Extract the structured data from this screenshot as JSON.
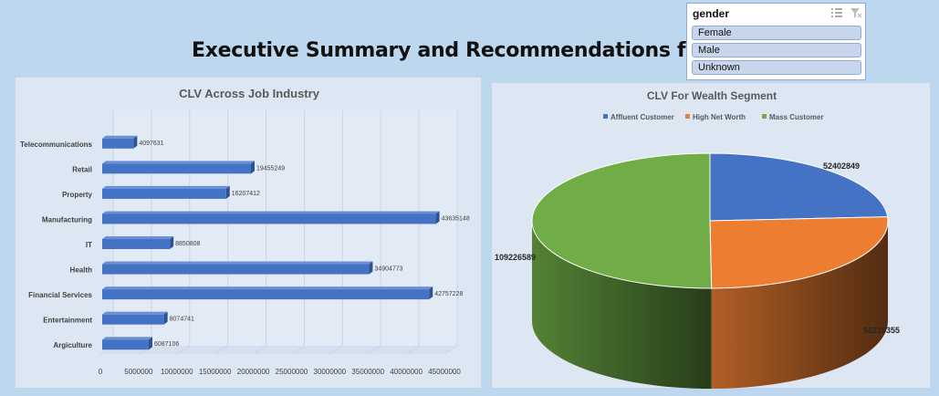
{
  "page": {
    "title": "Executive Summary and Recommendations for CLV"
  },
  "slicer": {
    "header": "gender",
    "items": [
      "Female",
      "Male",
      "Unknown"
    ],
    "multiselect_icon": "multi-select-icon",
    "clear_icon": "clear-filter-icon"
  },
  "chart_data": [
    {
      "type": "bar",
      "orientation": "horizontal",
      "title": "CLV Across Job Industry",
      "categories": [
        "Telecommunications",
        "Retail",
        "Property",
        "Manufacturing",
        "IT",
        "Health",
        "Financial Services",
        "Entertainment",
        "Argiculture"
      ],
      "values": [
        4097631,
        19455249,
        16207412,
        43635148,
        8850808,
        34904773,
        42757228,
        8074741,
        6087106
      ],
      "data_labels": [
        "4097631",
        "19455249",
        "16207412",
        "43635148",
        "8850808",
        "34904773",
        "42757228",
        "8074741",
        "6087106"
      ],
      "x_ticks": [
        "0",
        "5000000",
        "10000000",
        "15000000",
        "20000000",
        "25000000",
        "30000000",
        "35000000",
        "40000000",
        "45000000"
      ],
      "xlim": [
        0,
        45000000
      ],
      "grid": true,
      "bar_color": "#4472c4"
    },
    {
      "type": "pie",
      "title": "CLV For Wealth Segment",
      "labels": [
        "Affluent Customer",
        "High Net Worth",
        "Mass Customer"
      ],
      "values": [
        52402849,
        56219355,
        109226589
      ],
      "data_labels": [
        "52402849",
        "56219355",
        "109226589"
      ],
      "colors": [
        "#4472c4",
        "#ed7d31",
        "#70ad47"
      ],
      "legend_position": "top",
      "style": "3d"
    }
  ]
}
